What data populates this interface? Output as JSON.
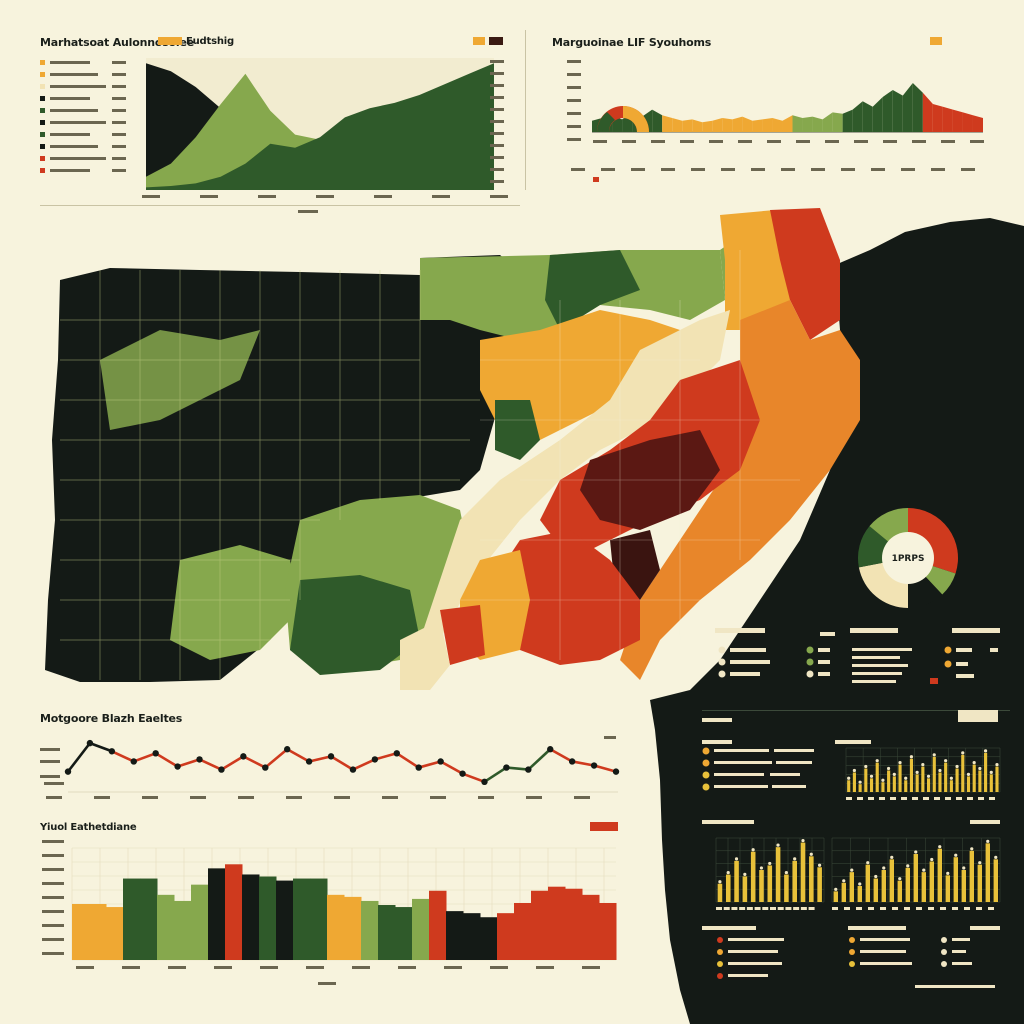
{
  "colors": {
    "bg": "#f7f3dd",
    "dark": "#141a16",
    "green_dark": "#2f5a2a",
    "green_light": "#86a84d",
    "cream": "#f2e3b4",
    "yellow": "#efa833",
    "orange": "#e8862a",
    "red": "#cf3a1e",
    "maroon": "#5b1813",
    "gold": "#e8c13a"
  },
  "panels": {
    "area_top_left": {
      "title": "Marhatsoat Aulonnosolee",
      "legend_label": "Eudtshig"
    },
    "strip_top_right": {
      "title": "Marguoinae LIF Syouhoms"
    },
    "line_mid_left": {
      "title": "Motgoore Blazh Eaeltes"
    },
    "bars_bottom_left": {
      "title": "Yiuol Eathetdiane"
    },
    "donut": {
      "label": "1PRPS"
    }
  },
  "chart_data": [
    {
      "type": "area",
      "title": "Marhatsoat Aulonnosolee",
      "x": [
        0,
        1,
        2,
        3,
        4,
        5,
        6,
        7,
        8,
        9,
        10,
        11,
        12,
        13,
        14
      ],
      "series": [
        {
          "color": "#141a16",
          "values": [
            96,
            90,
            78,
            62,
            45,
            32,
            22,
            15,
            10,
            6,
            4,
            3,
            2,
            2,
            2
          ]
        },
        {
          "color": "#86a84d",
          "values": [
            10,
            20,
            40,
            65,
            88,
            60,
            42,
            38,
            35,
            30,
            26,
            22,
            18,
            15,
            12
          ]
        },
        {
          "color": "#2f5a2a",
          "values": [
            2,
            3,
            5,
            10,
            20,
            35,
            32,
            40,
            55,
            62,
            66,
            72,
            80,
            88,
            96
          ]
        }
      ],
      "ylim": [
        0,
        100
      ]
    },
    {
      "type": "area",
      "title": "Marguoinae LIF Syouhoms",
      "x": [
        0,
        1,
        2,
        3,
        4,
        5,
        6,
        7,
        8,
        9,
        10,
        11,
        12,
        13,
        14,
        15,
        16,
        17,
        18,
        19,
        20,
        21,
        22,
        23,
        24,
        25,
        26,
        27,
        28,
        29,
        30,
        31,
        32,
        33,
        34,
        35,
        36,
        37,
        38,
        39
      ],
      "values": [
        8,
        10,
        12,
        9,
        14,
        11,
        16,
        12,
        10,
        8,
        9,
        7,
        8,
        10,
        9,
        11,
        8,
        9,
        10,
        8,
        12,
        10,
        11,
        9,
        14,
        13,
        16,
        22,
        18,
        25,
        30,
        26,
        35,
        28,
        20,
        18,
        16,
        14,
        12,
        10
      ],
      "segment_colors": [
        "#2f5a2a",
        "#2f5a2a",
        "#2f5a2a",
        "#2f5a2a",
        "#2f5a2a",
        "#2f5a2a",
        "#2f5a2a",
        "#efa833",
        "#efa833",
        "#efa833",
        "#efa833",
        "#efa833",
        "#efa833",
        "#efa833",
        "#efa833",
        "#efa833",
        "#efa833",
        "#efa833",
        "#efa833",
        "#efa833",
        "#86a84d",
        "#86a84d",
        "#86a84d",
        "#86a84d",
        "#86a84d",
        "#2f5a2a",
        "#2f5a2a",
        "#2f5a2a",
        "#2f5a2a",
        "#2f5a2a",
        "#2f5a2a",
        "#2f5a2a",
        "#2f5a2a",
        "#cf3a1e",
        "#cf3a1e",
        "#cf3a1e",
        "#cf3a1e",
        "#cf3a1e",
        "#cf3a1e",
        "#cf3a1e"
      ],
      "ylim": [
        0,
        40
      ]
    },
    {
      "type": "line",
      "title": "Motgoore Blazh Eaeltes",
      "x": [
        0,
        1,
        2,
        3,
        4,
        5,
        6,
        7,
        8,
        9,
        10,
        11,
        12,
        13,
        14,
        15,
        16,
        17,
        18,
        19,
        20,
        21,
        22,
        23,
        24,
        25
      ],
      "values": [
        20,
        48,
        40,
        30,
        38,
        25,
        32,
        22,
        35,
        24,
        42,
        30,
        35,
        22,
        32,
        38,
        24,
        30,
        18,
        10,
        24,
        22,
        42,
        30,
        26,
        20
      ],
      "segment_colors": [
        "#141a16",
        "#141a16",
        "#cf3a1e",
        "#cf3a1e",
        "#cf3a1e",
        "#cf3a1e",
        "#cf3a1e",
        "#cf3a1e",
        "#cf3a1e",
        "#cf3a1e",
        "#cf3a1e",
        "#cf3a1e",
        "#cf3a1e",
        "#cf3a1e",
        "#cf3a1e",
        "#cf3a1e",
        "#cf3a1e",
        "#cf3a1e",
        "#cf3a1e",
        "#2f5a2a",
        "#2f5a2a",
        "#2f5a2a",
        "#cf3a1e",
        "#cf3a1e",
        "#cf3a1e"
      ],
      "ylim": [
        0,
        55
      ]
    },
    {
      "type": "bar",
      "title": "Yiuol Eathetdiane",
      "values": [
        55,
        55,
        52,
        80,
        80,
        64,
        58,
        74,
        90,
        94,
        84,
        82,
        78,
        80,
        80,
        64,
        62,
        58,
        54,
        52,
        60,
        68,
        48,
        46,
        42,
        46,
        56,
        68,
        72,
        70,
        64,
        56
      ],
      "colors": [
        "#efa833",
        "#efa833",
        "#efa833",
        "#2f5a2a",
        "#2f5a2a",
        "#86a84d",
        "#86a84d",
        "#86a84d",
        "#141a16",
        "#cf3a1e",
        "#141a16",
        "#2f5a2a",
        "#141a16",
        "#2f5a2a",
        "#2f5a2a",
        "#efa833",
        "#efa833",
        "#86a84d",
        "#2f5a2a",
        "#2f5a2a",
        "#86a84d",
        "#cf3a1e",
        "#141a16",
        "#141a16",
        "#141a16",
        "#cf3a1e",
        "#cf3a1e",
        "#cf3a1e",
        "#cf3a1e",
        "#cf3a1e",
        "#cf3a1e",
        "#cf3a1e"
      ],
      "ylim": [
        0,
        110
      ]
    },
    {
      "type": "pie",
      "label": "1PRPS",
      "values": [
        30,
        8,
        12,
        22,
        14,
        14
      ],
      "colors": [
        "#cf3a1e",
        "#86a84d",
        "#141a16",
        "#f2e3b4",
        "#2f5a2a",
        "#86a84d"
      ]
    },
    {
      "type": "bar",
      "values": [
        12,
        20,
        8,
        24,
        14,
        30,
        10,
        22,
        16,
        28,
        12,
        34,
        18,
        26,
        14,
        36,
        20,
        30,
        12,
        24,
        38,
        16,
        28,
        22,
        40,
        18,
        26
      ],
      "color": "#e8c13a",
      "ylim": [
        0,
        45
      ]
    },
    {
      "type": "bar",
      "values": [
        20,
        30,
        45,
        28,
        55,
        35,
        40,
        60,
        30,
        45,
        65,
        50,
        38
      ],
      "color": "#e8c13a",
      "ylim": [
        0,
        70
      ]
    },
    {
      "type": "bar",
      "values": [
        10,
        18,
        28,
        15,
        35,
        22,
        30,
        40,
        20,
        32,
        45,
        28,
        38,
        50,
        25,
        42,
        30,
        48,
        35,
        55,
        40
      ],
      "color": "#e8c13a",
      "ylim": [
        0,
        60
      ]
    }
  ]
}
